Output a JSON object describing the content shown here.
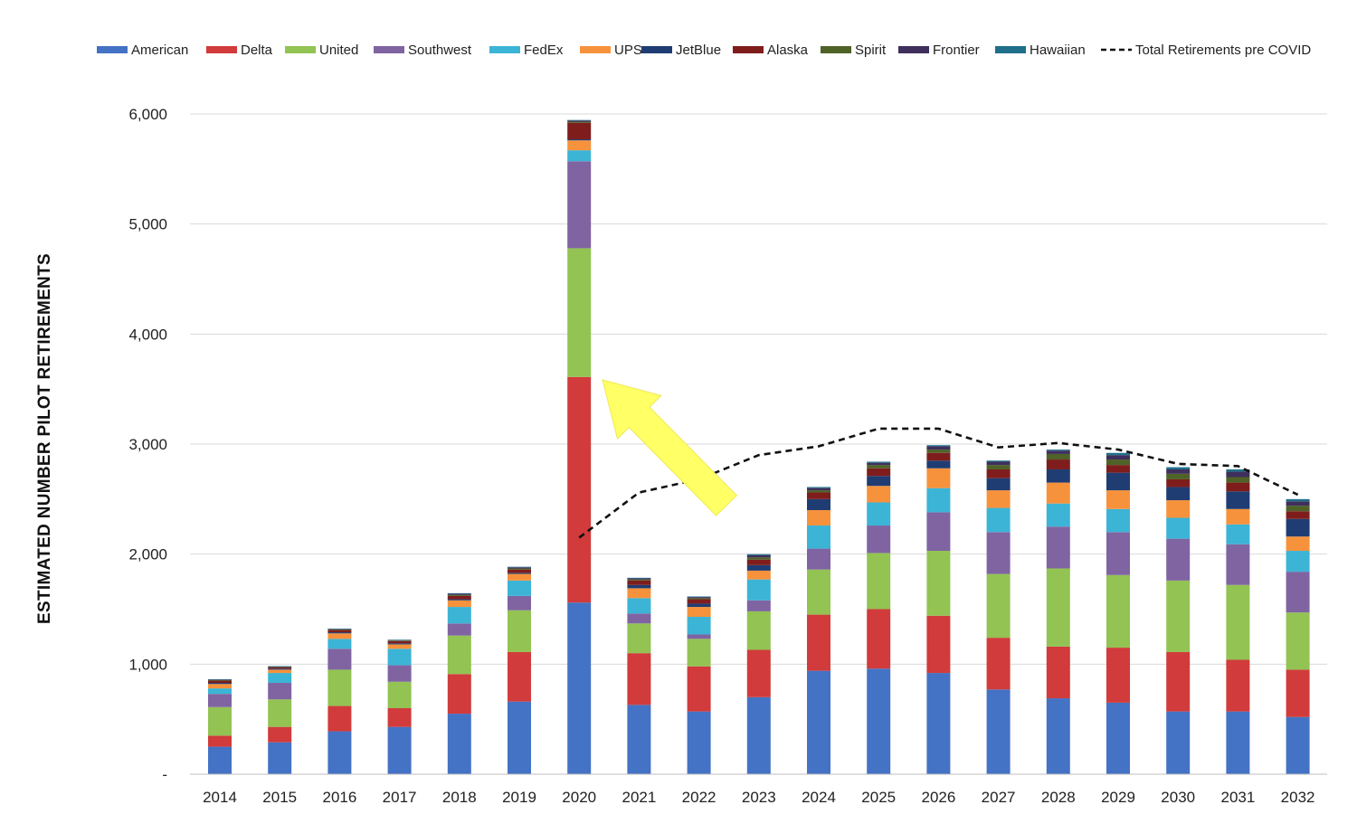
{
  "chart_data": {
    "type": "bar",
    "stacked": true,
    "title": "",
    "xlabel": "",
    "ylabel": "ESTIMATED NUMBER PILOT RETIREMENTS",
    "ylim": [
      0,
      6000
    ],
    "y_ticks": [
      0,
      1000,
      2000,
      3000,
      4000,
      5000,
      6000
    ],
    "y_tick_labels": [
      "-",
      "1,000",
      "2,000",
      "3,000",
      "4,000",
      "5,000",
      "6,000"
    ],
    "grid": true,
    "legend_position": "top",
    "categories": [
      "2014",
      "2015",
      "2016",
      "2017",
      "2018",
      "2019",
      "2020",
      "2021",
      "2022",
      "2023",
      "2024",
      "2025",
      "2026",
      "2027",
      "2028",
      "2029",
      "2030",
      "2031",
      "2032"
    ],
    "series": [
      {
        "name": "American",
        "color": "#4472C4",
        "values": [
          250,
          290,
          390,
          430,
          550,
          660,
          1560,
          630,
          570,
          700,
          940,
          960,
          920,
          770,
          690,
          650,
          570,
          570,
          520
        ]
      },
      {
        "name": "Delta",
        "color": "#D13B3B",
        "values": [
          100,
          140,
          230,
          170,
          360,
          450,
          2050,
          470,
          410,
          430,
          510,
          540,
          520,
          470,
          470,
          500,
          540,
          470,
          430
        ]
      },
      {
        "name": "United",
        "color": "#92C353",
        "values": [
          260,
          250,
          330,
          240,
          350,
          380,
          1170,
          270,
          250,
          350,
          410,
          510,
          590,
          580,
          710,
          660,
          650,
          680,
          520
        ]
      },
      {
        "name": "Southwest",
        "color": "#8064A2",
        "values": [
          120,
          150,
          190,
          150,
          110,
          130,
          790,
          90,
          40,
          100,
          190,
          250,
          350,
          380,
          380,
          390,
          380,
          370,
          370
        ]
      },
      {
        "name": "FedEx",
        "color": "#3CB4D6",
        "values": [
          50,
          90,
          90,
          150,
          150,
          140,
          100,
          140,
          160,
          190,
          210,
          210,
          220,
          220,
          210,
          210,
          190,
          180,
          190
        ]
      },
      {
        "name": "UPS",
        "color": "#F7923C",
        "values": [
          40,
          30,
          50,
          40,
          60,
          60,
          90,
          90,
          90,
          80,
          140,
          150,
          180,
          160,
          190,
          170,
          160,
          140,
          130
        ]
      },
      {
        "name": "JetBlue",
        "color": "#1F3D73",
        "values": [
          10,
          10,
          10,
          10,
          10,
          10,
          10,
          30,
          30,
          50,
          100,
          90,
          70,
          110,
          120,
          160,
          120,
          160,
          160
        ]
      },
      {
        "name": "Alaska",
        "color": "#7F1D1D",
        "values": [
          20,
          10,
          20,
          20,
          30,
          30,
          150,
          40,
          40,
          50,
          60,
          70,
          70,
          80,
          90,
          70,
          70,
          80,
          70
        ]
      },
      {
        "name": "Spirit",
        "color": "#4F6228",
        "values": [
          5,
          5,
          5,
          5,
          10,
          10,
          10,
          10,
          10,
          20,
          20,
          30,
          30,
          40,
          50,
          50,
          50,
          50,
          50
        ]
      },
      {
        "name": "Frontier",
        "color": "#3F2F5C",
        "values": [
          5,
          5,
          5,
          5,
          10,
          10,
          10,
          10,
          10,
          20,
          20,
          20,
          30,
          30,
          30,
          40,
          40,
          50,
          40
        ]
      },
      {
        "name": "Hawaiian",
        "color": "#1F6F8B",
        "values": [
          2,
          2,
          2,
          2,
          5,
          5,
          5,
          5,
          5,
          10,
          10,
          10,
          10,
          10,
          10,
          20,
          20,
          20,
          20
        ]
      }
    ],
    "line_series": {
      "name": "Total Retirements pre COVID",
      "color": "#111111",
      "style": "dashed",
      "categories": [
        "2020",
        "2021",
        "2022",
        "2023",
        "2024",
        "2025",
        "2026",
        "2027",
        "2028",
        "2029",
        "2030",
        "2031",
        "2032"
      ],
      "values": [
        2150,
        2560,
        2680,
        2900,
        2980,
        3140,
        3140,
        2970,
        3010,
        2950,
        2820,
        2800,
        2540
      ]
    },
    "annotations": [
      {
        "type": "arrow",
        "color": "#FFFF66",
        "description": "large yellow arrow pointing from 2022 up-left toward 2020"
      }
    ]
  }
}
